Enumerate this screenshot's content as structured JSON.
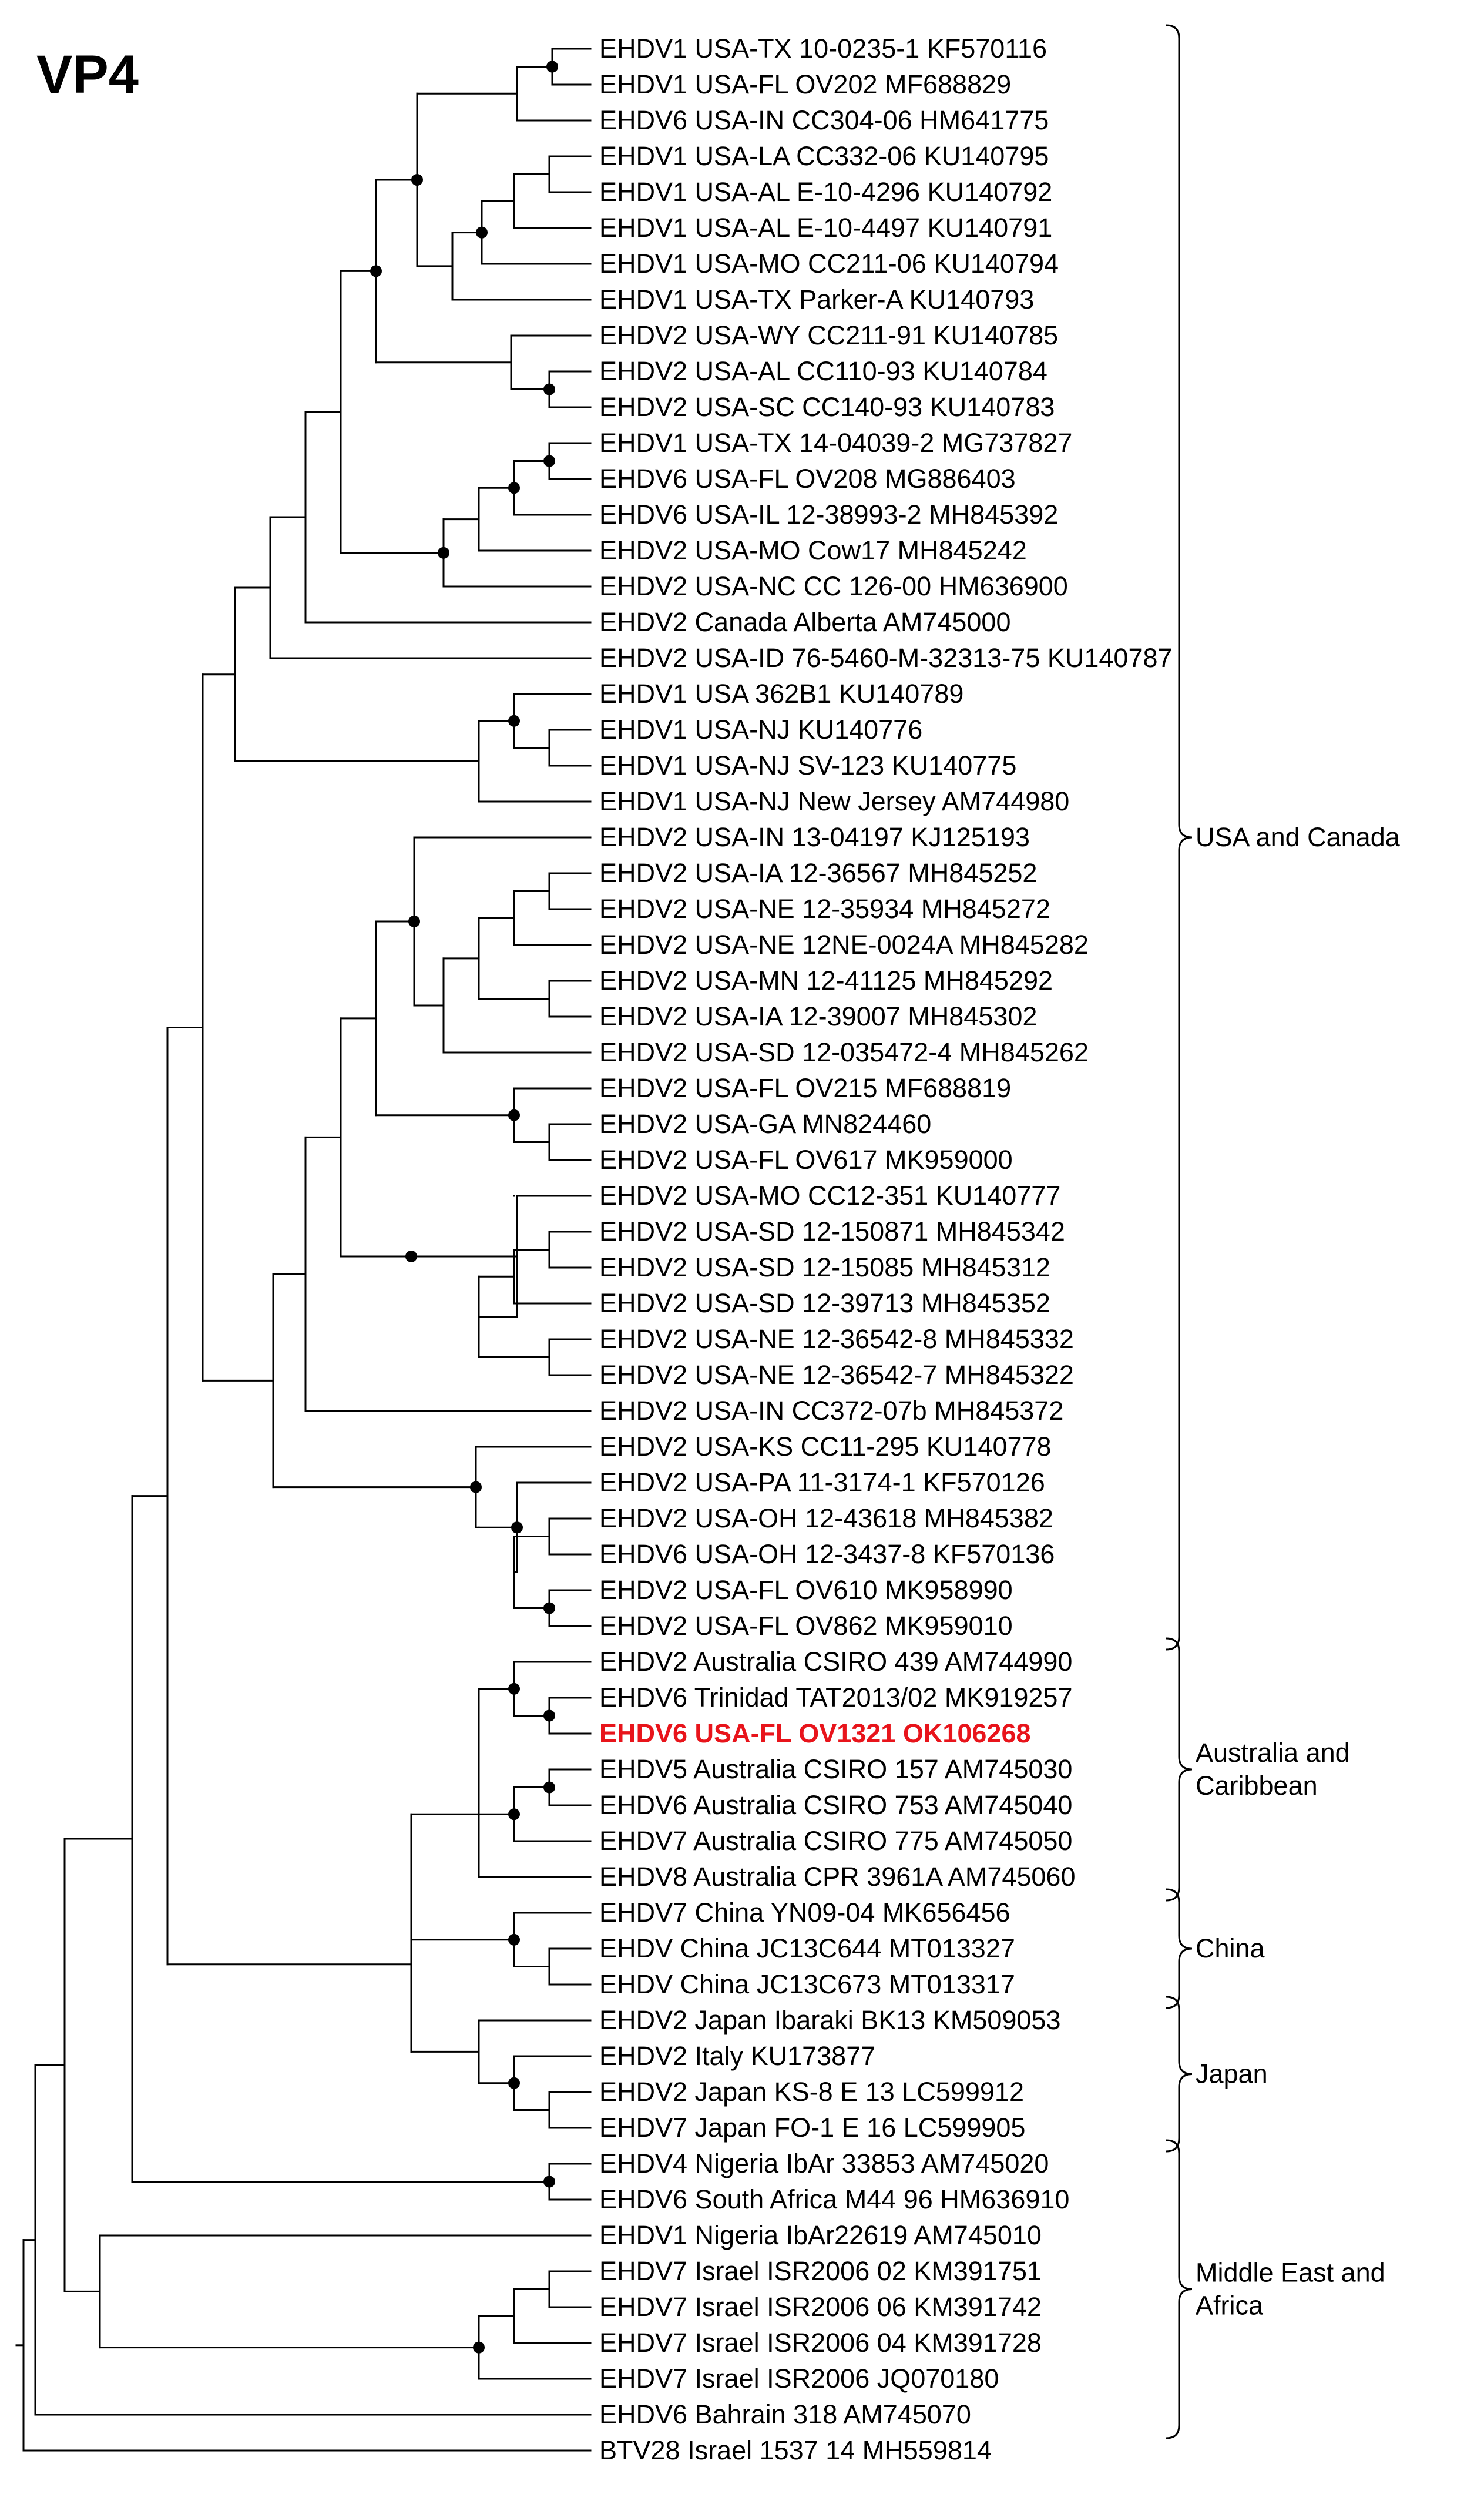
{
  "title": "VP4",
  "taxa": [
    {
      "label": "EHDV1 USA-TX 10-0235-1 KF570116"
    },
    {
      "label": "EHDV1 USA-FL OV202 MF688829"
    },
    {
      "label": "EHDV6 USA-IN CC304-06 HM641775"
    },
    {
      "label": "EHDV1 USA-LA CC332-06 KU140795"
    },
    {
      "label": "EHDV1 USA-AL E-10-4296 KU140792"
    },
    {
      "label": "EHDV1 USA-AL E-10-4497 KU140791"
    },
    {
      "label": "EHDV1 USA-MO CC211-06 KU140794"
    },
    {
      "label": "EHDV1 USA-TX Parker-A KU140793"
    },
    {
      "label": "EHDV2 USA-WY CC211-91 KU140785"
    },
    {
      "label": "EHDV2 USA-AL CC110-93 KU140784"
    },
    {
      "label": "EHDV2 USA-SC CC140-93 KU140783"
    },
    {
      "label": "EHDV1 USA-TX 14-04039-2 MG737827"
    },
    {
      "label": "EHDV6 USA-FL OV208 MG886403"
    },
    {
      "label": "EHDV6 USA-IL 12-38993-2 MH845392"
    },
    {
      "label": "EHDV2 USA-MO Cow17 MH845242"
    },
    {
      "label": "EHDV2 USA-NC CC 126-00 HM636900"
    },
    {
      "label": "EHDV2 Canada Alberta AM745000"
    },
    {
      "label": "EHDV2 USA-ID 76-5460-M-32313-75 KU140787"
    },
    {
      "label": "EHDV1 USA 362B1 KU140789"
    },
    {
      "label": "EHDV1 USA-NJ KU140776"
    },
    {
      "label": "EHDV1 USA-NJ SV-123 KU140775"
    },
    {
      "label": "EHDV1 USA-NJ New Jersey AM744980"
    },
    {
      "label": "EHDV2 USA-IN 13-04197 KJ125193"
    },
    {
      "label": "EHDV2 USA-IA 12-36567 MH845252"
    },
    {
      "label": "EHDV2 USA-NE 12-35934 MH845272"
    },
    {
      "label": "EHDV2 USA-NE 12NE-0024A MH845282"
    },
    {
      "label": "EHDV2 USA-MN 12-41125 MH845292"
    },
    {
      "label": "EHDV2 USA-IA 12-39007 MH845302"
    },
    {
      "label": "EHDV2 USA-SD 12-035472-4 MH845262"
    },
    {
      "label": "EHDV2 USA-FL OV215 MF688819"
    },
    {
      "label": "EHDV2 USA-GA MN824460"
    },
    {
      "label": "EHDV2 USA-FL OV617 MK959000"
    },
    {
      "label": "EHDV2 USA-MO CC12-351 KU140777"
    },
    {
      "label": "EHDV2 USA-SD 12-150871 MH845342"
    },
    {
      "label": "EHDV2 USA-SD 12-15085 MH845312"
    },
    {
      "label": "EHDV2 USA-SD 12-39713 MH845352"
    },
    {
      "label": "EHDV2 USA-NE 12-36542-8 MH845332"
    },
    {
      "label": "EHDV2 USA-NE 12-36542-7 MH845322"
    },
    {
      "label": "EHDV2 USA-IN CC372-07b MH845372"
    },
    {
      "label": "EHDV2 USA-KS CC11-295 KU140778"
    },
    {
      "label": "EHDV2 USA-PA 11-3174-1 KF570126"
    },
    {
      "label": "EHDV2 USA-OH 12-43618 MH845382"
    },
    {
      "label": "EHDV6 USA-OH 12-3437-8 KF570136"
    },
    {
      "label": "EHDV2 USA-FL OV610 MK958990"
    },
    {
      "label": "EHDV2 USA-FL OV862 MK959010"
    },
    {
      "label": "EHDV2 Australia CSIRO 439 AM744990"
    },
    {
      "label": "EHDV6 Trinidad TAT2013/02 MK919257"
    },
    {
      "label": "EHDV6 USA-FL OV1321 OK106268",
      "highlight": true
    },
    {
      "label": "EHDV5 Australia CSIRO 157 AM745030"
    },
    {
      "label": "EHDV6 Australia CSIRO 753 AM745040"
    },
    {
      "label": "EHDV7 Australia CSIRO 775 AM745050"
    },
    {
      "label": "EHDV8 Australia CPR 3961A AM745060"
    },
    {
      "label": "EHDV7 China YN09-04 MK656456"
    },
    {
      "label": "EHDV China JC13C644 MT013327"
    },
    {
      "label": "EHDV China JC13C673 MT013317"
    },
    {
      "label": "EHDV2 Japan Ibaraki BK13 KM509053"
    },
    {
      "label": "EHDV2 Italy KU173877"
    },
    {
      "label": "EHDV2 Japan KS-8 E 13 LC599912"
    },
    {
      "label": "EHDV7 Japan FO-1 E 16 LC599905"
    },
    {
      "label": "EHDV4 Nigeria IbAr 33853 AM745020"
    },
    {
      "label": "EHDV6 South Africa M44 96 HM636910"
    },
    {
      "label": "EHDV1 Nigeria IbAr22619 AM745010"
    },
    {
      "label": "EHDV7 Israel ISR2006 02 KM391751"
    },
    {
      "label": "EHDV7 Israel ISR2006 06 KM391742"
    },
    {
      "label": "EHDV7 Israel ISR2006 04 KM391728"
    },
    {
      "label": "EHDV7 Israel ISR2006 JQ070180"
    },
    {
      "label": "EHDV6 Bahrain 318 AM745070"
    },
    {
      "label": "BTV28 Israel 1537 14 MH559814"
    }
  ],
  "groups": [
    {
      "label": "USA and Canada",
      "first_taxon": 0,
      "last_taxon": 44
    },
    {
      "label": "Australia and Caribbean",
      "first_taxon": 45,
      "last_taxon": 51
    },
    {
      "label": "China",
      "first_taxon": 52,
      "last_taxon": 54
    },
    {
      "label": "Japan",
      "first_taxon": 55,
      "last_taxon": 58
    },
    {
      "label": "Middle East and Africa",
      "first_taxon": 59,
      "last_taxon": 66
    }
  ],
  "colors": {
    "branch": "#000000",
    "highlight": "#e8141b",
    "text": "#000000"
  }
}
